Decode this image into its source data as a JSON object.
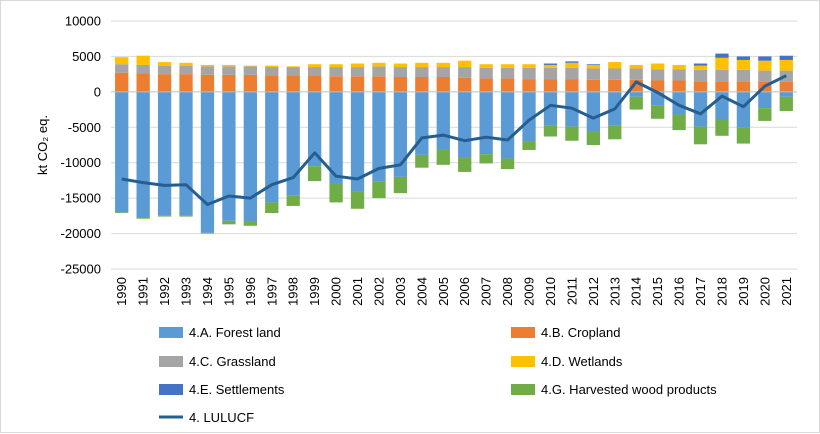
{
  "chart_data": {
    "type": "bar",
    "stacked": true,
    "ylabel": "kt CO₂ eq.",
    "ylim": [
      -25000,
      10000
    ],
    "yticks": [
      10000,
      5000,
      0,
      -5000,
      -10000,
      -15000,
      -20000,
      -25000
    ],
    "ytick_labels": [
      "10000",
      "5000",
      "0",
      "-5000",
      "-10000",
      "-15000",
      "-20000",
      "-25000"
    ],
    "grid": true,
    "legend_position": "bottom",
    "categories": [
      "1990",
      "1991",
      "1992",
      "1993",
      "1994",
      "1995",
      "1996",
      "1997",
      "1998",
      "1999",
      "2000",
      "2001",
      "2002",
      "2003",
      "2004",
      "2005",
      "2006",
      "2007",
      "2008",
      "2009",
      "2010",
      "2011",
      "2012",
      "2013",
      "2014",
      "2015",
      "2016",
      "2017",
      "2018",
      "2019",
      "2020",
      "2021"
    ],
    "series": [
      {
        "name": "4.A. Forest land",
        "color": "#5b9bd5",
        "values": [
          -17000,
          -17800,
          -17500,
          -17400,
          -19900,
          -18200,
          -18300,
          -15600,
          -14600,
          -10500,
          -13000,
          -14000,
          -12600,
          -12000,
          -8900,
          -8200,
          -9200,
          -8800,
          -9400,
          -7000,
          -4800,
          -4900,
          -5600,
          -4800,
          -700,
          -1900,
          -3200,
          -4900,
          -3900,
          -5000,
          -2300,
          -700
        ]
      },
      {
        "name": "4.B. Cropland",
        "color": "#ed7d31",
        "values": [
          2700,
          2600,
          2500,
          2500,
          2400,
          2400,
          2400,
          2300,
          2300,
          2300,
          2200,
          2200,
          2200,
          2100,
          2100,
          2100,
          2000,
          1900,
          1900,
          1800,
          1800,
          1800,
          1700,
          1700,
          1700,
          1600,
          1600,
          1500,
          1500,
          1500,
          1400,
          1400
        ]
      },
      {
        "name": "4.C. Grassland",
        "color": "#a5a5a5",
        "values": [
          1200,
          1200,
          1200,
          1200,
          1200,
          1200,
          1200,
          1200,
          1200,
          1200,
          1300,
          1300,
          1400,
          1400,
          1400,
          1400,
          1500,
          1500,
          1500,
          1600,
          1600,
          1600,
          1600,
          1600,
          1600,
          1600,
          1600,
          1600,
          1600,
          1600,
          1600,
          1600
        ]
      },
      {
        "name": "4.D. Wetlands",
        "color": "#ffc000",
        "values": [
          1000,
          1300,
          500,
          400,
          200,
          200,
          100,
          200,
          100,
          400,
          400,
          500,
          500,
          500,
          600,
          600,
          900,
          500,
          500,
          500,
          400,
          700,
          500,
          900,
          500,
          800,
          600,
          600,
          1700,
          1400,
          1400,
          1500
        ]
      },
      {
        "name": "4.E. Settlements",
        "color": "#4472c4",
        "values": [
          0,
          0,
          0,
          0,
          0,
          0,
          0,
          0,
          0,
          0,
          0,
          0,
          0,
          0,
          0,
          0,
          0,
          0,
          0,
          0,
          200,
          200,
          100,
          0,
          0,
          0,
          0,
          300,
          600,
          500,
          600,
          600
        ]
      },
      {
        "name": "4.G. Harvested wood products",
        "color": "#70ad47",
        "values": [
          -100,
          -100,
          -100,
          -200,
          -100,
          -500,
          -600,
          -1500,
          -1500,
          -2100,
          -2600,
          -2500,
          -2400,
          -2300,
          -1800,
          -2100,
          -2100,
          -1300,
          -1500,
          -1200,
          -1500,
          -2000,
          -1900,
          -1900,
          -1800,
          -1900,
          -2200,
          -2500,
          -2300,
          -2300,
          -1800,
          -2000
        ]
      },
      {
        "name": "4. LULUCF",
        "color": "#255e91",
        "type": "line",
        "values": [
          -12300,
          -12800,
          -13200,
          -13100,
          -15900,
          -14700,
          -15000,
          -13100,
          -12100,
          -8600,
          -11900,
          -12300,
          -10800,
          -10300,
          -6500,
          -6100,
          -6900,
          -6400,
          -6800,
          -4000,
          -1900,
          -2300,
          -3700,
          -2400,
          1400,
          -100,
          -1900,
          -3100,
          -600,
          -2100,
          800,
          2300
        ]
      }
    ]
  }
}
